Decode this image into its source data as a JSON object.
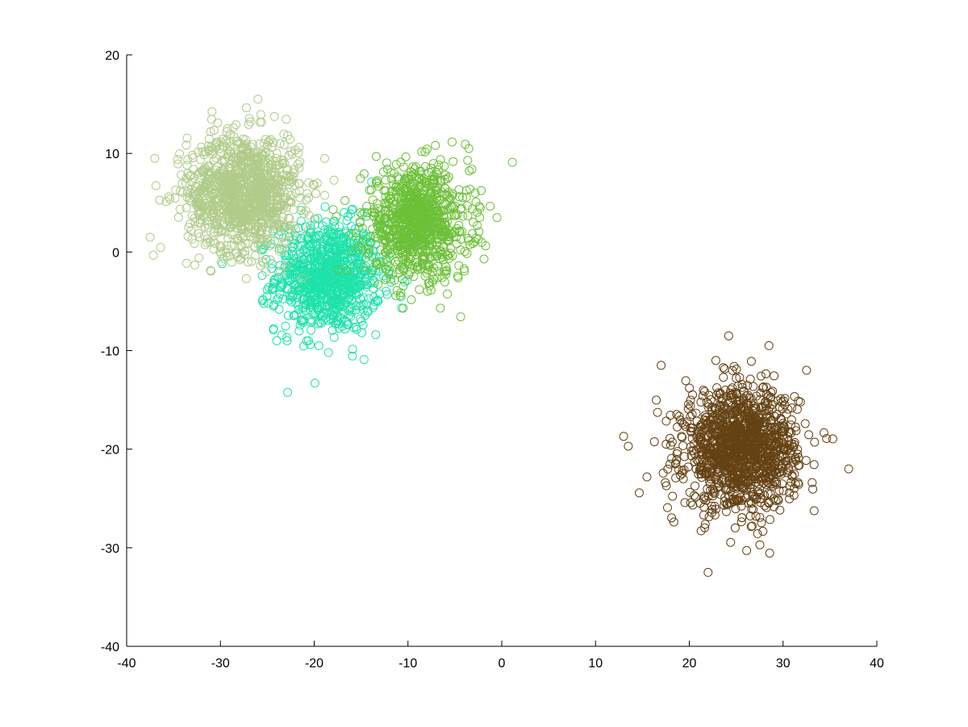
{
  "chart_data": {
    "type": "scatter",
    "title": "",
    "xlabel": "",
    "ylabel": "",
    "xlim": [
      -40,
      40
    ],
    "ylim": [
      -40,
      20
    ],
    "grid": false,
    "legend": "none",
    "marker": "open-circle",
    "x_ticks": [
      "-40",
      "-30",
      "-20",
      "-10",
      "0",
      "10",
      "20",
      "30",
      "40"
    ],
    "y_ticks": [
      "20",
      "10",
      "0",
      "-10",
      "-20",
      "-30",
      "-40"
    ],
    "series": [
      {
        "color": "#1ee2aa",
        "center": [
          -18.5,
          -2.5
        ],
        "spread": 2.8,
        "count": 900
      },
      {
        "color": "#b0cb8a",
        "center": [
          -27.5,
          6.0
        ],
        "spread": 3.0,
        "count": 1100
      },
      {
        "color": "#6cc038",
        "center": [
          -9.0,
          3.0
        ],
        "spread": 2.8,
        "count": 900
      },
      {
        "color": "#654214",
        "center": [
          25.5,
          -20.0
        ],
        "spread": 3.0,
        "count": 1300
      }
    ],
    "outliers": [
      {
        "series": 3,
        "x": 22.0,
        "y": -32.5
      },
      {
        "series": 3,
        "x": 37.0,
        "y": -22.0
      },
      {
        "series": 3,
        "x": 13.0,
        "y": -18.7
      },
      {
        "series": 3,
        "x": 24.2,
        "y": -8.5
      },
      {
        "series": 3,
        "x": 28.5,
        "y": -9.5
      },
      {
        "series": 3,
        "x": 17.0,
        "y": -11.5
      },
      {
        "series": 3,
        "x": 13.5,
        "y": -19.7
      },
      {
        "series": 3,
        "x": 32.5,
        "y": -12.0
      },
      {
        "series": 1,
        "x": -37.5,
        "y": 1.5
      },
      {
        "series": 1,
        "x": -37.0,
        "y": 9.5
      },
      {
        "series": 1,
        "x": -26.0,
        "y": 15.5
      },
      {
        "series": 2,
        "x": -3.5,
        "y": 10.5
      },
      {
        "series": 2,
        "x": -2.5,
        "y": 1.3
      },
      {
        "series": 2,
        "x": -10.5,
        "y": -5.7
      },
      {
        "series": 0,
        "x": -19.5,
        "y": -9.5
      },
      {
        "series": 0,
        "x": -24.0,
        "y": -9.0
      }
    ]
  }
}
